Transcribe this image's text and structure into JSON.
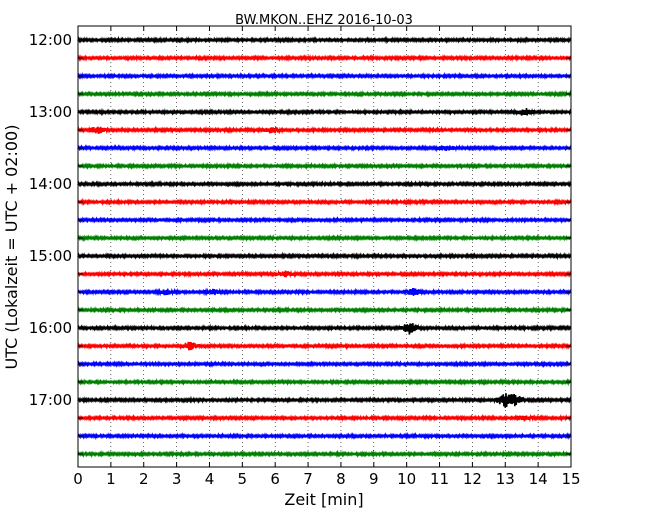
{
  "chart_data": {
    "type": "line",
    "title": "BW.MKON..EHZ 2016-10-03",
    "xlabel": "Zeit  [min]",
    "ylabel": "UTC (Lokalzeit = UTC + 02:00)",
    "xlim": [
      0,
      15
    ],
    "x_ticks": [
      0,
      1,
      2,
      3,
      4,
      5,
      6,
      7,
      8,
      9,
      10,
      11,
      12,
      13,
      14,
      15
    ],
    "y_tick_labels": [
      "12:00",
      "13:00",
      "14:00",
      "15:00",
      "16:00",
      "17:00"
    ],
    "trace_interval_minutes": 15,
    "grid": "vertical dotted",
    "series_colors": [
      "#000000",
      "#ff0000",
      "#0000ff",
      "#008000"
    ],
    "traces": [
      {
        "start": "12:00",
        "color": "#000000"
      },
      {
        "start": "12:15",
        "color": "#ff0000"
      },
      {
        "start": "12:30",
        "color": "#0000ff"
      },
      {
        "start": "12:45",
        "color": "#008000"
      },
      {
        "start": "13:00",
        "color": "#000000"
      },
      {
        "start": "13:15",
        "color": "#ff0000"
      },
      {
        "start": "13:30",
        "color": "#0000ff"
      },
      {
        "start": "13:45",
        "color": "#008000"
      },
      {
        "start": "14:00",
        "color": "#000000"
      },
      {
        "start": "14:15",
        "color": "#ff0000"
      },
      {
        "start": "14:30",
        "color": "#0000ff"
      },
      {
        "start": "14:45",
        "color": "#008000"
      },
      {
        "start": "15:00",
        "color": "#000000"
      },
      {
        "start": "15:15",
        "color": "#ff0000"
      },
      {
        "start": "15:30",
        "color": "#0000ff"
      },
      {
        "start": "15:45",
        "color": "#008000"
      },
      {
        "start": "16:00",
        "color": "#000000"
      },
      {
        "start": "16:15",
        "color": "#ff0000"
      },
      {
        "start": "16:30",
        "color": "#0000ff"
      },
      {
        "start": "16:45",
        "color": "#008000"
      },
      {
        "start": "17:00",
        "color": "#000000"
      },
      {
        "start": "17:15",
        "color": "#ff0000"
      },
      {
        "start": "17:30",
        "color": "#0000ff"
      },
      {
        "start": "17:45",
        "color": "#008000"
      }
    ],
    "events": [
      {
        "trace": "13:15",
        "minute": 0.6,
        "amplitude": 2.0
      },
      {
        "trace": "13:15",
        "minute": 5.9,
        "amplitude": 1.8
      },
      {
        "trace": "15:30",
        "minute": 2.7,
        "amplitude": 1.6
      },
      {
        "trace": "15:30",
        "minute": 4.1,
        "amplitude": 1.4
      },
      {
        "trace": "15:30",
        "minute": 10.2,
        "amplitude": 2.0
      },
      {
        "trace": "16:00",
        "minute": 10.1,
        "amplitude": 3.5
      },
      {
        "trace": "16:15",
        "minute": 3.4,
        "amplitude": 2.2
      },
      {
        "trace": "17:00",
        "minute": 13.0,
        "amplitude": 4.0
      },
      {
        "trace": "17:00",
        "minute": 13.3,
        "amplitude": 3.0
      },
      {
        "trace": "13:00",
        "minute": 13.6,
        "amplitude": 2.0
      },
      {
        "trace": "13:30",
        "minute": 11.2,
        "amplitude": 1.6
      },
      {
        "trace": "15:15",
        "minute": 6.3,
        "amplitude": 1.6
      },
      {
        "trace": "17:15",
        "minute": 13.6,
        "amplitude": 1.6
      }
    ]
  }
}
